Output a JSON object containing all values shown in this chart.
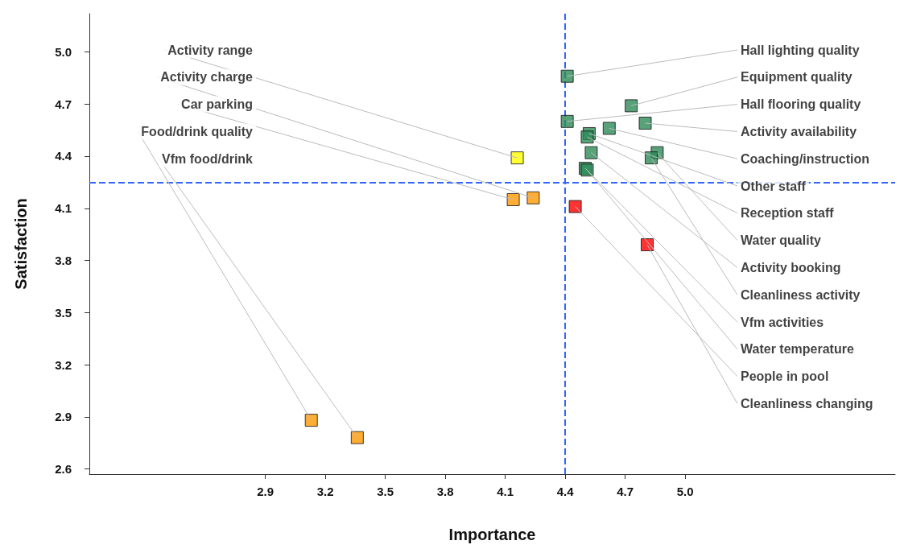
{
  "chart_data": {
    "type": "scatter",
    "xlabel": "Importance",
    "ylabel": "Satisfaction",
    "x": [
      4.16,
      4.24,
      4.14,
      3.13,
      3.36,
      4.41,
      4.73,
      4.41,
      4.8,
      4.62,
      4.52,
      4.51,
      4.86,
      4.53,
      4.83,
      4.5,
      4.51,
      4.45,
      4.81
    ],
    "values": [
      4.39,
      4.16,
      4.15,
      2.88,
      2.78,
      4.86,
      4.69,
      4.6,
      4.59,
      4.56,
      4.53,
      4.51,
      4.42,
      4.42,
      4.39,
      4.33,
      4.32,
      4.11,
      3.89
    ],
    "colors": [
      "#ffff00",
      "#ff9900",
      "#ff9900",
      "#ff9900",
      "#ff9900",
      "#2e8b57",
      "#2e8b57",
      "#2e8b57",
      "#2e8b57",
      "#2e8b57",
      "#2e8b57",
      "#2e8b57",
      "#2e8b57",
      "#2e8b57",
      "#2e8b57",
      "#2e8b57",
      "#2e8b57",
      "#ff0000",
      "#ff0000"
    ],
    "marker": "square",
    "xlim": [
      2.02,
      6.05
    ],
    "xticks": [
      2.9,
      3.2,
      3.5,
      3.8,
      4.1,
      4.4,
      4.7,
      {
        "value": 5,
        "label": "5.0"
      }
    ],
    "ylim": [
      2.57,
      5.22
    ],
    "yticks": [
      2.6,
      2.9,
      3.2,
      3.5,
      3.8,
      4.1,
      4.4,
      4.7,
      {
        "value": 5,
        "label": "5.0"
      }
    ],
    "ref_lines": [
      {
        "axis": "x",
        "value": 4.4,
        "color": "#3366ff",
        "line_style": "dashed"
      },
      {
        "axis": "y",
        "value": 4.25,
        "color": "#3366ff",
        "line_style": "dashed"
      }
    ],
    "annotations": [
      {
        "text": "Activity range",
        "x": 4.16,
        "y": 4.39
      },
      {
        "text": "Activity charge",
        "x": 4.24,
        "y": 4.16
      },
      {
        "text": "Car parking",
        "x": 4.14,
        "y": 4.15
      },
      {
        "text": "Food/drink quality",
        "x": 3.13,
        "y": 2.88
      },
      {
        "text": "Vfm food/drink",
        "x": 3.36,
        "y": 2.78
      },
      {
        "text": "Hall lighting quality",
        "x": 4.41,
        "y": 4.86
      },
      {
        "text": "Equipment quality",
        "x": 4.73,
        "y": 4.69
      },
      {
        "text": "Hall flooring quality",
        "x": 4.41,
        "y": 4.6
      },
      {
        "text": "Activity availability",
        "x": 4.8,
        "y": 4.59
      },
      {
        "text": "Coaching/instruction",
        "x": 4.62,
        "y": 4.56
      },
      {
        "text": "Other staff",
        "x": 4.52,
        "y": 4.53
      },
      {
        "text": "Reception staff",
        "x": 4.51,
        "y": 4.51
      },
      {
        "text": "Water quality",
        "x": 4.86,
        "y": 4.42
      },
      {
        "text": "Activity booking",
        "x": 4.53,
        "y": 4.42
      },
      {
        "text": "Cleanliness activity",
        "x": 4.83,
        "y": 4.39
      },
      {
        "text": "Vfm activities",
        "x": 4.5,
        "y": 4.33
      },
      {
        "text": "Water temperature",
        "x": 4.51,
        "y": 4.32
      },
      {
        "text": "People in pool",
        "x": 4.45,
        "y": 4.11
      },
      {
        "text": "Cleanliness changing",
        "x": 4.81,
        "y": 3.89
      }
    ],
    "grid": false
  }
}
